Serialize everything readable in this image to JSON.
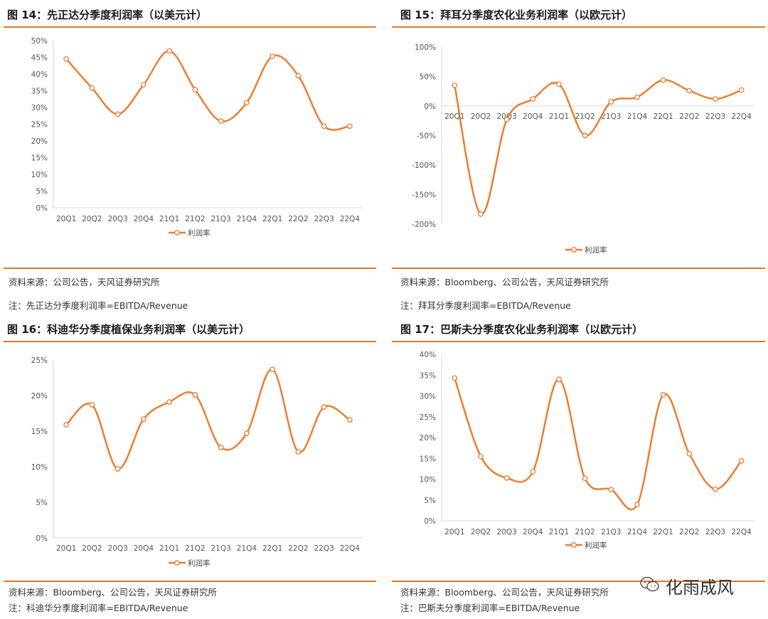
{
  "charts": [
    {
      "title": "图 14：先正达分季度利润率（以美元计）",
      "source": "资料来源：公司公告，天风证券研究所",
      "note": "注：先正达分季度利润率=EBITDA/Revenue"
    },
    {
      "title": "图 15：拜耳分季度农化业务利润率（以欧元计）",
      "source": "资料来源：Bloomberg、公司公告，天风证券研究所",
      "note": "注：拜耳分季度利润率=EBITDA/Revenue"
    },
    {
      "title": "图 16：科迪华分季度植保业务利润率（以美元计）",
      "source": "资料来源：Bloomberg、公司公告，天风证券研究所",
      "note": "注：科迪华分季度利润率=EBITDA/Revenue"
    },
    {
      "title": "图 17：巴斯夫分季度农化业务利润率（以欧元计）",
      "source": "资料来源：Bloomberg、公司公告，天风证券研究所",
      "note": "注：巴斯夫分季度利润率=EBITDA/Revenue"
    }
  ],
  "watermark": {
    "text": "化雨成风",
    "icon": "wechat-icon"
  },
  "colors": {
    "accent": "#e0782a",
    "line": "#ed7d31",
    "grid": "#d9d9d9"
  },
  "chart_data": [
    {
      "type": "line",
      "title": "图 14：先正达分季度利润率（以美元计）",
      "categories": [
        "20Q1",
        "20Q2",
        "20Q3",
        "20Q4",
        "21Q1",
        "21Q2",
        "21Q3",
        "21Q4",
        "22Q1",
        "22Q2",
        "22Q3",
        "22Q4"
      ],
      "series": [
        {
          "name": "利润率",
          "values": [
            44.5,
            35.8,
            28.0,
            36.8,
            46.9,
            35.3,
            25.9,
            31.4,
            45.3,
            39.5,
            24.4,
            24.4
          ]
        }
      ],
      "ylim": [
        0,
        50
      ],
      "yticks": [
        0,
        5,
        10,
        15,
        20,
        25,
        30,
        35,
        40,
        45,
        50
      ],
      "yunit": "%",
      "legend": "bottom-center",
      "grid": false
    },
    {
      "type": "line",
      "title": "图 15：拜耳分季度农化业务利润率（以欧元计）",
      "categories": [
        "20Q1",
        "20Q2",
        "20Q3",
        "20Q4",
        "21Q1",
        "21Q2",
        "21Q3",
        "21Q4",
        "22Q1",
        "22Q2",
        "22Q3",
        "22Q4"
      ],
      "series": [
        {
          "name": "利润率",
          "values": [
            35,
            -183,
            -23,
            12,
            37,
            -50,
            7,
            15,
            44,
            26,
            12,
            27
          ]
        }
      ],
      "ylim": [
        -200,
        100
      ],
      "yticks": [
        -200,
        -150,
        -100,
        -50,
        0,
        50,
        100
      ],
      "yunit": "%",
      "legend": "bottom-center",
      "grid": false
    },
    {
      "type": "line",
      "title": "图 16：科迪华分季度植保业务利润率（以美元计）",
      "categories": [
        "20Q1",
        "20Q2",
        "20Q3",
        "20Q4",
        "21Q1",
        "21Q2",
        "21Q3",
        "21Q4",
        "22Q1",
        "22Q2",
        "22Q3",
        "22Q4"
      ],
      "series": [
        {
          "name": "利润率",
          "values": [
            15.9,
            18.7,
            9.7,
            16.7,
            19.1,
            20.1,
            12.7,
            14.7,
            23.7,
            12.1,
            18.4,
            16.6
          ]
        }
      ],
      "ylim": [
        0,
        25
      ],
      "yticks": [
        0,
        5,
        10,
        15,
        20,
        25
      ],
      "yunit": "%",
      "legend": "bottom-center",
      "grid": false
    },
    {
      "type": "line",
      "title": "图 17：巴斯夫分季度农化业务利润率（以欧元计）",
      "categories": [
        "20Q1",
        "20Q2",
        "20Q3",
        "20Q4",
        "21Q1",
        "21Q2",
        "21Q3",
        "21Q4",
        "22Q1",
        "22Q2",
        "22Q3",
        "22Q4"
      ],
      "series": [
        {
          "name": "利润率",
          "values": [
            34.3,
            15.5,
            10.3,
            11.8,
            34.0,
            10.2,
            7.5,
            3.9,
            30.3,
            16.1,
            7.6,
            14.4
          ]
        }
      ],
      "ylim": [
        0,
        40
      ],
      "yticks": [
        0,
        5,
        10,
        15,
        20,
        25,
        30,
        35,
        40
      ],
      "yunit": "%",
      "legend": "bottom-center",
      "grid": false
    }
  ]
}
